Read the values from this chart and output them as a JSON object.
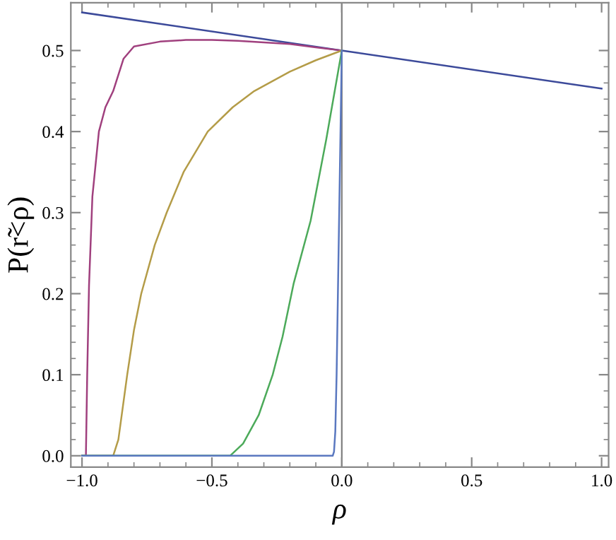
{
  "chart_data": {
    "type": "line",
    "xlabel": "ρ",
    "ylabel": "P(r̃<ρ)",
    "xlim": [
      -1.043,
      1.027
    ],
    "ylim": [
      -0.014,
      0.559
    ],
    "xticks": [
      {
        "value": -1.0,
        "label": "−1.0"
      },
      {
        "value": -0.5,
        "label": "−0.5"
      },
      {
        "value": 0,
        "label": "0.0"
      },
      {
        "value": 0.5,
        "label": "0.5"
      },
      {
        "value": 1.0,
        "label": "1.0"
      }
    ],
    "yticks": [
      {
        "value": 0,
        "label": "0.0"
      },
      {
        "value": 0.1,
        "label": "0.1"
      },
      {
        "value": 0.2,
        "label": "0.2"
      },
      {
        "value": 0.3,
        "label": "0.3"
      },
      {
        "value": 0.4,
        "label": "0.4"
      },
      {
        "value": 0.5,
        "label": "0.5"
      }
    ],
    "grid": false,
    "marker": "none",
    "line_style": "solid",
    "ref_lines": [
      {
        "axis": "x",
        "value": 0,
        "color": "#808080"
      }
    ],
    "series": [
      {
        "color": "#3c4a9a",
        "x": [
          -1.0,
          0.0,
          1.0
        ],
        "values": [
          0.547,
          0.5,
          0.453
        ]
      },
      {
        "color": "#a0407e",
        "x": [
          -1.0,
          -0.985,
          -0.98,
          -0.973,
          -0.96,
          -0.935,
          -0.91,
          -0.88,
          -0.84,
          -0.8,
          -0.7,
          -0.6,
          -0.5,
          -0.4,
          -0.3,
          -0.2,
          -0.1,
          0.0
        ],
        "values": [
          0.0,
          0.0,
          0.1,
          0.21,
          0.32,
          0.4,
          0.43,
          0.45,
          0.49,
          0.505,
          0.511,
          0.513,
          0.513,
          0.512,
          0.51,
          0.508,
          0.504,
          0.5
        ]
      },
      {
        "color": "#b49c48",
        "x": [
          -1.0,
          -0.88,
          -0.86,
          -0.826,
          -0.8,
          -0.772,
          -0.72,
          -0.674,
          -0.609,
          -0.516,
          -0.42,
          -0.337,
          -0.2,
          -0.1,
          0.0
        ],
        "values": [
          0.0,
          0.0,
          0.02,
          0.1,
          0.155,
          0.2,
          0.26,
          0.3,
          0.35,
          0.4,
          0.43,
          0.45,
          0.474,
          0.488,
          0.5
        ]
      },
      {
        "color": "#4caa5a",
        "x": [
          -1.0,
          -0.43,
          -0.38,
          -0.32,
          -0.266,
          -0.228,
          -0.185,
          -0.12,
          -0.06,
          0.0
        ],
        "values": [
          0.0,
          0.0,
          0.015,
          0.05,
          0.1,
          0.147,
          0.213,
          0.29,
          0.39,
          0.5
        ]
      },
      {
        "color": "#5a78c0",
        "x": [
          -1.0,
          -0.035,
          -0.03,
          -0.025,
          -0.02,
          -0.015,
          -0.01,
          -0.005,
          0.0
        ],
        "values": [
          0.0,
          0.0,
          0.005,
          0.03,
          0.1,
          0.2,
          0.3,
          0.4,
          0.5
        ]
      }
    ]
  }
}
